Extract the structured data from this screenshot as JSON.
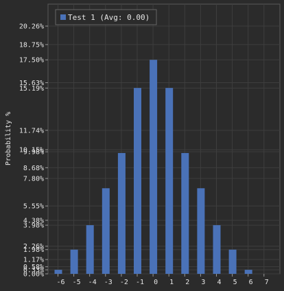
{
  "chart_data": {
    "type": "bar",
    "ylabel": "Probability %",
    "grid": true,
    "legend_position": "top-left",
    "series": [
      {
        "name": "Test 1 (Avg: 0.00)",
        "color": "#4a72b8",
        "categories": [
          "-6",
          "-5",
          "-4",
          "-3",
          "-2",
          "-1",
          "0",
          "1",
          "2",
          "3",
          "4",
          "5",
          "6",
          "7"
        ],
        "values": [
          0.33,
          1.98,
          3.98,
          7.0,
          9.88,
          15.2,
          17.5,
          15.2,
          9.88,
          7.0,
          3.98,
          1.98,
          0.33,
          0
        ]
      }
    ],
    "y_ticks": [
      {
        "value": 0.0,
        "label": "0.00%"
      },
      {
        "value": 0.33,
        "label": "0.33%"
      },
      {
        "value": 0.58,
        "label": "0.58%"
      },
      {
        "value": 1.17,
        "label": "1.17%"
      },
      {
        "value": 1.98,
        "label": "1.98%"
      },
      {
        "value": 2.26,
        "label": "2.26%"
      },
      {
        "value": 3.98,
        "label": "3.98%"
      },
      {
        "value": 4.38,
        "label": "4.38%"
      },
      {
        "value": 5.55,
        "label": "5.55%"
      },
      {
        "value": 7.8,
        "label": "7.80%"
      },
      {
        "value": 8.68,
        "label": "8.68%"
      },
      {
        "value": 9.98,
        "label": "9.98%"
      },
      {
        "value": 10.15,
        "label": "10.15%"
      },
      {
        "value": 11.74,
        "label": "11.74%"
      },
      {
        "value": 15.19,
        "label": "15.19%"
      },
      {
        "value": 15.63,
        "label": "15.63%"
      },
      {
        "value": 17.5,
        "label": "17.50%"
      },
      {
        "value": 18.75,
        "label": "18.75%"
      },
      {
        "value": 20.26,
        "label": "20.26%"
      }
    ],
    "ylim": [
      0,
      22
    ]
  }
}
